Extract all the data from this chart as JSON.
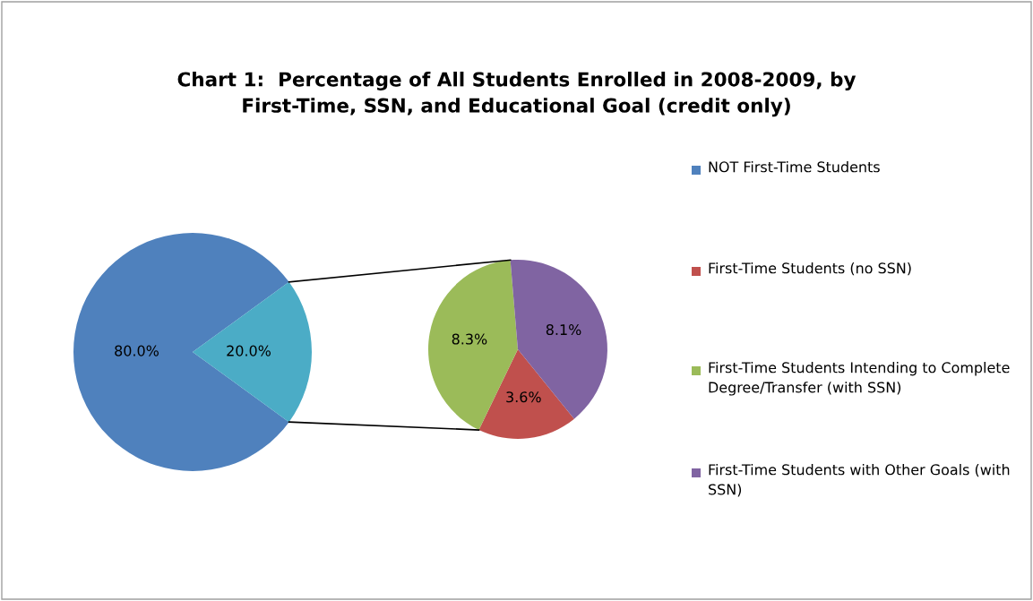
{
  "chart_data": [
    {
      "type": "pie",
      "title": "Chart 1:  Percentage of All Students Enrolled in 2008-2009, by First-Time, SSN, and Educational Goal (credit only)",
      "categories": [
        "NOT First-Time Students",
        null
      ],
      "values": [
        80.0,
        20.0
      ],
      "colors": [
        "#4f81bd",
        "#4bacc6"
      ],
      "value_labels": [
        "80.0%",
        "20.0%"
      ],
      "legend": "right"
    },
    {
      "type": "pie",
      "categories": [
        "First-Time Students (no SSN)",
        "First-Time Students Intending to Complete Degree/Transfer (with SSN)",
        "First-Time Students with Other Goals (with SSN)"
      ],
      "values": [
        3.6,
        8.3,
        8.1
      ],
      "colors": [
        "#c0504d",
        "#9bbb59",
        "#8064a2"
      ],
      "value_labels": [
        "3.6%",
        "8.3%",
        "8.1%"
      ],
      "legend": "right"
    }
  ]
}
